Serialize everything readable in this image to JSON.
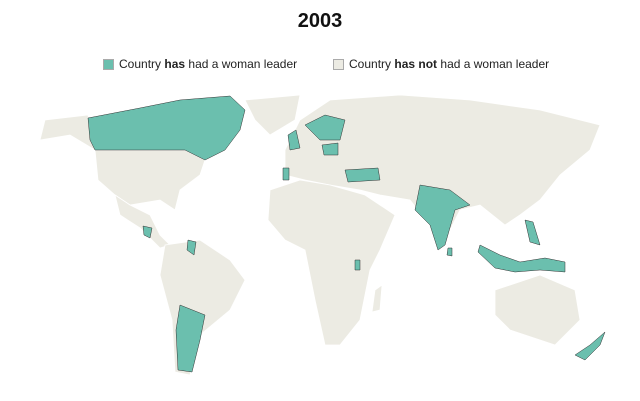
{
  "title": "2003",
  "legend": [
    {
      "prefix": "Country",
      "emphasis": "has",
      "suffix": "had a woman leader",
      "color": "#6bbfae"
    },
    {
      "prefix": "Country",
      "emphasis": "has not",
      "suffix": "had a woman leader",
      "color": "#ecebe3"
    }
  ]
}
